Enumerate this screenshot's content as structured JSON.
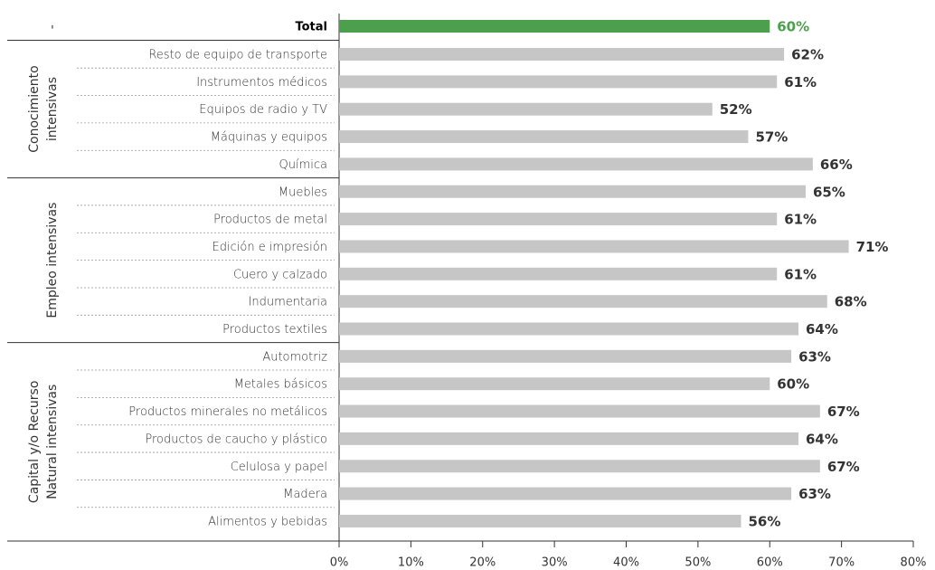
{
  "chart_data": {
    "type": "bar",
    "orientation": "horizontal",
    "categories": [
      "Total",
      "Resto de equipo de transporte",
      "Instrumentos médicos",
      "Equipos de radio y TV",
      "Máquinas y equipos",
      "Química",
      "Muebles",
      "Productos de metal",
      "Edición e impresión",
      "Cuero y calzado",
      "Indumentaria",
      "Productos textiles",
      "Automotriz",
      "Metales básicos",
      "Productos minerales no metálicos",
      "Productos de caucho y plástico",
      "Celulosa y papel",
      "Madera",
      "Alimentos y bebidas"
    ],
    "values": [
      60,
      62,
      61,
      52,
      57,
      66,
      65,
      61,
      71,
      61,
      68,
      64,
      63,
      60,
      67,
      64,
      67,
      63,
      56
    ],
    "value_labels": [
      "60%",
      "62%",
      "61%",
      "52%",
      "57%",
      "66%",
      "65%",
      "61%",
      "71%",
      "61%",
      "68%",
      "64%",
      "63%",
      "60%",
      "67%",
      "64%",
      "67%",
      "63%",
      "56%"
    ],
    "colors": [
      "#4c9f4c",
      "#c6c6c6",
      "#c6c6c6",
      "#c6c6c6",
      "#c6c6c6",
      "#c6c6c6",
      "#c6c6c6",
      "#c6c6c6",
      "#c6c6c6",
      "#c6c6c6",
      "#c6c6c6",
      "#c6c6c6",
      "#c6c6c6",
      "#c6c6c6",
      "#c6c6c6",
      "#c6c6c6",
      "#c6c6c6",
      "#c6c6c6",
      "#c6c6c6"
    ],
    "groups": [
      {
        "lines": [
          "-"
        ],
        "count": 1
      },
      {
        "lines": [
          "Conocimiento",
          "intensivas"
        ],
        "count": 5
      },
      {
        "lines": [
          "Empleo intensivas"
        ],
        "count": 6
      },
      {
        "lines": [
          "Capital y/o Recurso",
          "Natural intensivas"
        ],
        "count": 7
      }
    ],
    "xlim": [
      0,
      80
    ],
    "xticks": [
      {
        "value": 0,
        "label": "0%"
      },
      {
        "value": 10,
        "label": "10%"
      },
      {
        "value": 20,
        "label": "20%"
      },
      {
        "value": 30,
        "label": "30%"
      },
      {
        "value": 40,
        "label": "40%"
      },
      {
        "value": 50,
        "label": "50%"
      },
      {
        "value": 60,
        "label": "60%"
      },
      {
        "value": 70,
        "label": "70%"
      },
      {
        "value": 80,
        "label": "80%"
      }
    ]
  }
}
